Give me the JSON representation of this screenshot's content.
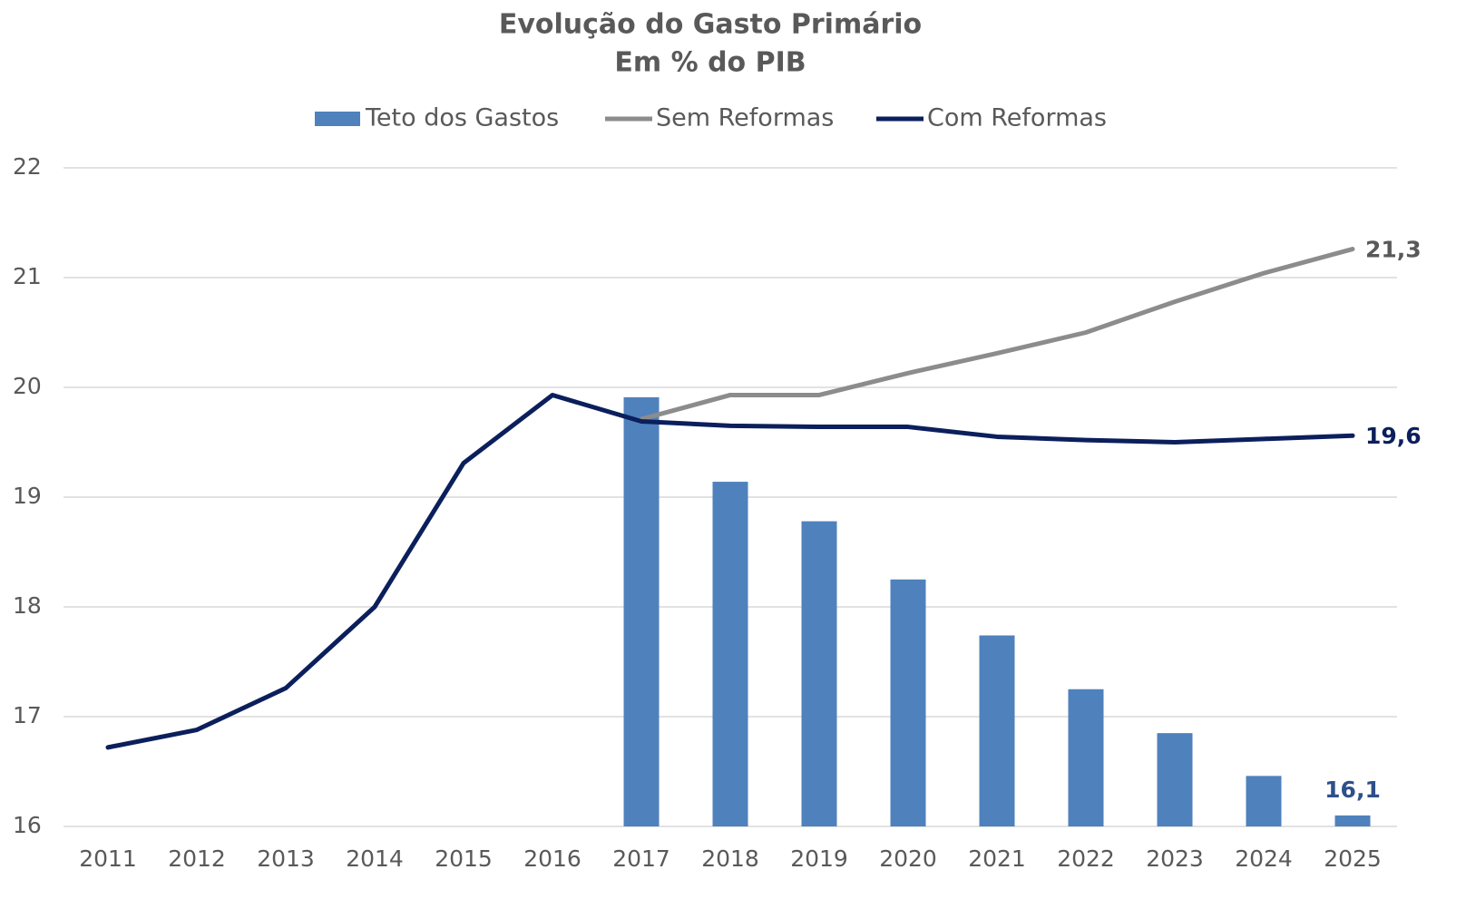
{
  "chart_data": {
    "type": "bar_line",
    "title": "Evolução do Gasto Primário",
    "subtitle": "Em % do PIB",
    "categories": [
      "2011",
      "2012",
      "2013",
      "2014",
      "2015",
      "2016",
      "2017",
      "2018",
      "2019",
      "2020",
      "2021",
      "2022",
      "2023",
      "2024",
      "2025"
    ],
    "series": [
      {
        "name": "Teto dos Gastos",
        "type": "bar",
        "color": "#4f81bd",
        "values": [
          null,
          null,
          null,
          null,
          null,
          null,
          19.91,
          19.14,
          18.78,
          18.25,
          17.74,
          17.25,
          16.85,
          16.46,
          16.1
        ],
        "value_labels": [
          null,
          null,
          null,
          null,
          null,
          null,
          null,
          null,
          null,
          null,
          null,
          null,
          null,
          null,
          "16,1"
        ]
      },
      {
        "name": "Sem Reformas",
        "type": "line",
        "color": "#8c8c8c",
        "values": [
          null,
          null,
          null,
          null,
          null,
          null,
          19.71,
          19.93,
          19.93,
          20.13,
          20.31,
          20.5,
          20.78,
          21.04,
          21.26
        ],
        "value_labels": [
          null,
          null,
          null,
          null,
          null,
          null,
          null,
          null,
          null,
          null,
          null,
          null,
          null,
          null,
          "21,3"
        ]
      },
      {
        "name": "Com Reformas",
        "type": "line",
        "color": "#0b1f5c",
        "values": [
          16.72,
          16.88,
          17.26,
          18.0,
          19.31,
          19.93,
          19.69,
          19.65,
          19.64,
          19.64,
          19.55,
          19.52,
          19.5,
          19.53,
          19.56
        ],
        "value_labels": [
          null,
          null,
          null,
          null,
          null,
          null,
          null,
          null,
          null,
          null,
          null,
          null,
          null,
          null,
          "19,6"
        ]
      }
    ],
    "ylim": [
      16,
      22
    ],
    "yticks": [
      16,
      17,
      18,
      19,
      20,
      21,
      22
    ],
    "grid": true,
    "legend": "top"
  }
}
